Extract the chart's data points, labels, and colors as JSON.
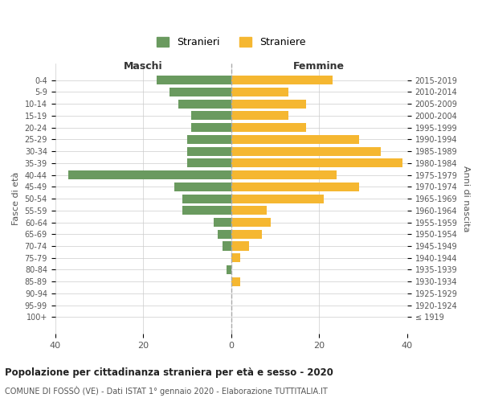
{
  "age_groups": [
    "100+",
    "95-99",
    "90-94",
    "85-89",
    "80-84",
    "75-79",
    "70-74",
    "65-69",
    "60-64",
    "55-59",
    "50-54",
    "45-49",
    "40-44",
    "35-39",
    "30-34",
    "25-29",
    "20-24",
    "15-19",
    "10-14",
    "5-9",
    "0-4"
  ],
  "birth_years": [
    "≤ 1919",
    "1920-1924",
    "1925-1929",
    "1930-1934",
    "1935-1939",
    "1940-1944",
    "1945-1949",
    "1950-1954",
    "1955-1959",
    "1960-1964",
    "1965-1969",
    "1970-1974",
    "1975-1979",
    "1980-1984",
    "1985-1989",
    "1990-1994",
    "1995-1999",
    "2000-2004",
    "2005-2009",
    "2010-2014",
    "2015-2019"
  ],
  "maschi": [
    0,
    0,
    0,
    0,
    1,
    0,
    2,
    3,
    4,
    11,
    11,
    13,
    37,
    10,
    10,
    10,
    9,
    9,
    12,
    14,
    17
  ],
  "femmine": [
    0,
    0,
    0,
    2,
    0,
    2,
    4,
    7,
    9,
    8,
    21,
    29,
    24,
    39,
    34,
    29,
    17,
    13,
    17,
    13,
    23
  ],
  "color_maschi": "#6a9a5f",
  "color_femmine": "#f5b731",
  "title": "Popolazione per cittadinanza straniera per età e sesso - 2020",
  "subtitle": "COMUNE DI FOSSÒ (VE) - Dati ISTAT 1° gennaio 2020 - Elaborazione TUTTITALIA.IT",
  "xlabel_left": "Maschi",
  "xlabel_right": "Femmine",
  "ylabel_left": "Fasce di età",
  "ylabel_right": "Anni di nascita",
  "legend_maschi": "Stranieri",
  "legend_femmine": "Straniere",
  "xlim": 40,
  "background_color": "#ffffff",
  "grid_color": "#cccccc"
}
